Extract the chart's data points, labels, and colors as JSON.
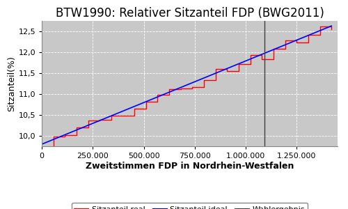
{
  "title": "BTW1990: Relativer Sitzanteil FDP (BWG2011)",
  "xlabel": "Zweitstimmen FDP in Nordrhein-Westfalen",
  "ylabel": "Sitzanteil(%)",
  "x_min": 0,
  "x_max": 1450000,
  "y_min": 9.75,
  "y_max": 12.75,
  "wahlergebnis_x": 1093000,
  "ideal_x_start": 0,
  "ideal_y_start": 9.8,
  "ideal_x_end": 1420000,
  "ideal_y_end": 12.63,
  "bg_color": "#c8c8c8",
  "grid_color": "#ffffff",
  "title_fontsize": 12,
  "axis_label_fontsize": 9,
  "tick_fontsize": 8,
  "legend_fontsize": 8,
  "xticks": [
    0,
    250000,
    500000,
    750000,
    1000000,
    1250000
  ],
  "xtick_labels": [
    "0",
    "250.000",
    "500.000",
    "750.000",
    "1.000.000",
    "1.250.000"
  ],
  "yticks": [
    10.0,
    10.5,
    11.0,
    11.5,
    12.0,
    12.5
  ],
  "num_steps": 25,
  "noise_scale": 0.12,
  "real_color": "#ff0000",
  "ideal_color": "#0000ff",
  "wahlergebnis_color": "#404040",
  "real_linewidth": 1.0,
  "ideal_linewidth": 1.2,
  "vline_linewidth": 1.0
}
